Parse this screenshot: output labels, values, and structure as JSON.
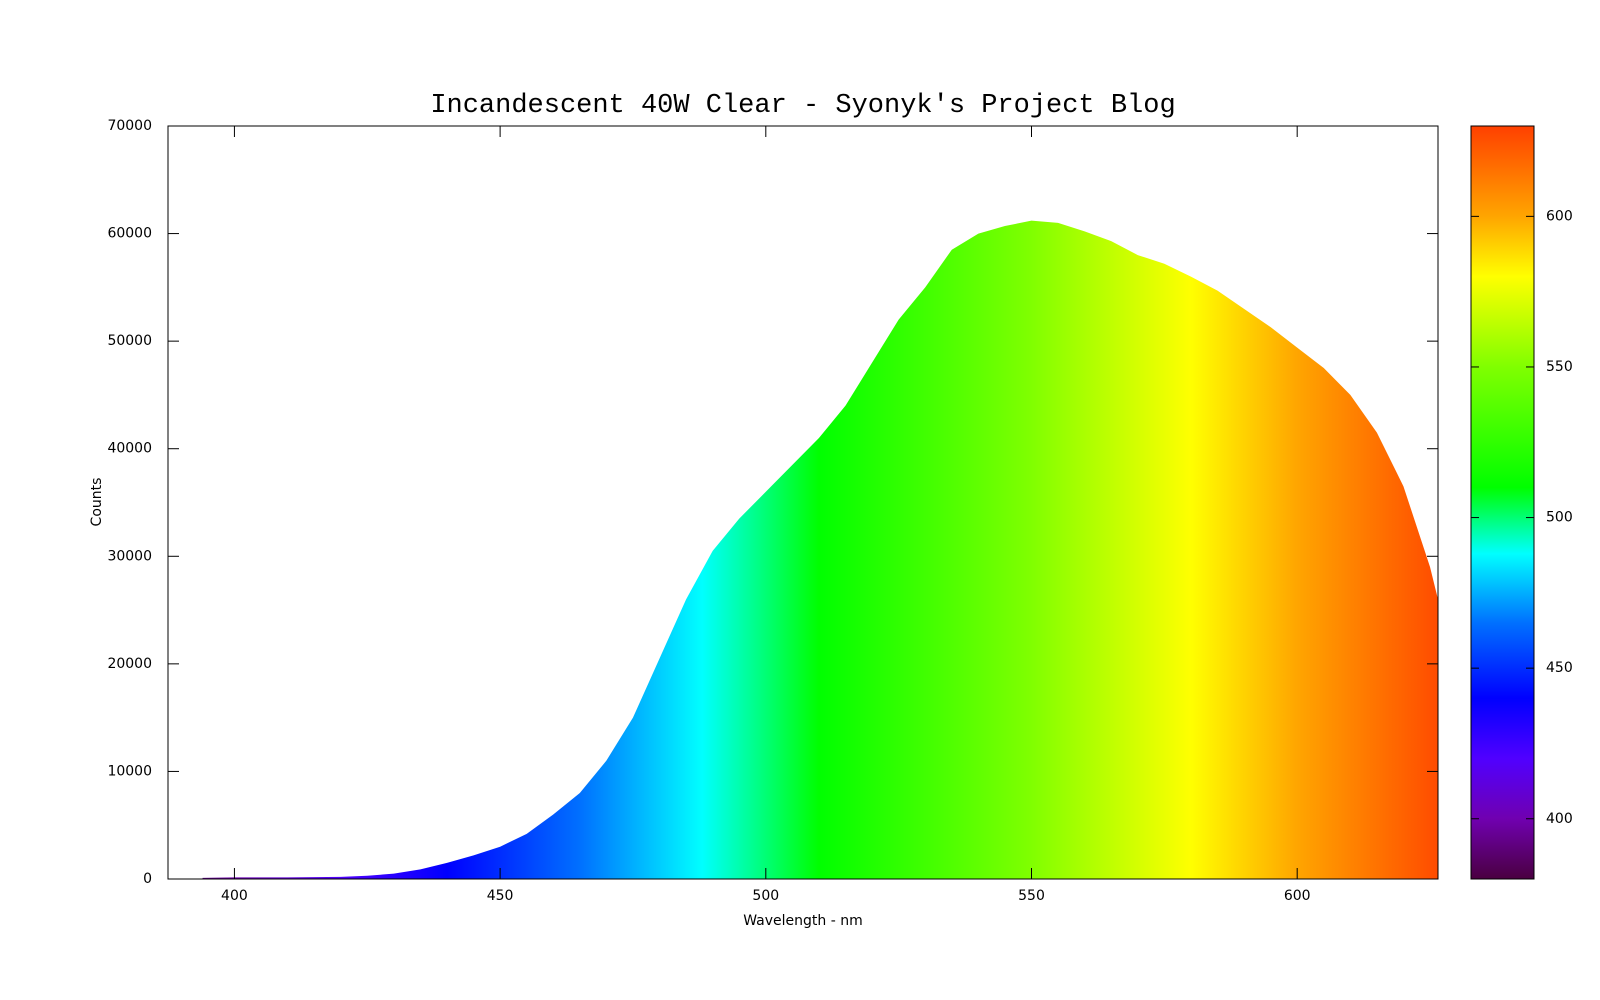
{
  "chart_data": {
    "type": "area",
    "title": "Incandescent 40W Clear - Syonyk's Project Blog",
    "x_label": "Wavelength - nm",
    "y_label": "Counts",
    "x": [
      394,
      400,
      410,
      420,
      425,
      430,
      435,
      440,
      445,
      450,
      455,
      460,
      465,
      470,
      475,
      480,
      485,
      490,
      495,
      500,
      505,
      510,
      515,
      520,
      525,
      530,
      535,
      540,
      545,
      550,
      555,
      560,
      565,
      570,
      575,
      580,
      585,
      590,
      595,
      600,
      605,
      610,
      615,
      620,
      625,
      626.5
    ],
    "values": [
      100,
      150,
      150,
      200,
      300,
      500,
      900,
      1500,
      2200,
      3000,
      4200,
      6000,
      8000,
      11000,
      15000,
      20500,
      26000,
      30500,
      33500,
      36000,
      38500,
      41000,
      44000,
      48000,
      52000,
      55000,
      58500,
      60000,
      60700,
      61200,
      61000,
      60200,
      59300,
      58000,
      57200,
      56000,
      54700,
      53000,
      51300,
      49400,
      47500,
      45000,
      41500,
      36500,
      29000,
      26000
    ],
    "xlim": [
      387.5,
      626.5
    ],
    "ylim": [
      0,
      70000
    ],
    "xticks": [
      400,
      450,
      500,
      550,
      600
    ],
    "yticks": [
      0,
      10000,
      20000,
      30000,
      40000,
      50000,
      60000,
      70000
    ],
    "cblim": [
      380,
      630
    ],
    "cbticks": [
      400,
      450,
      500,
      550,
      600
    ],
    "palette": [
      {
        "value": 380,
        "color": "#4a0040"
      },
      {
        "value": 400,
        "color": "#7000b0"
      },
      {
        "value": 420,
        "color": "#5000ff"
      },
      {
        "value": 440,
        "color": "#0000ff"
      },
      {
        "value": 465,
        "color": "#0070ff"
      },
      {
        "value": 488,
        "color": "#00ffff"
      },
      {
        "value": 510,
        "color": "#00ff00"
      },
      {
        "value": 550,
        "color": "#80ff00"
      },
      {
        "value": 580,
        "color": "#ffff00"
      },
      {
        "value": 600,
        "color": "#ffa500"
      },
      {
        "value": 630,
        "color": "#ff4000"
      }
    ]
  }
}
